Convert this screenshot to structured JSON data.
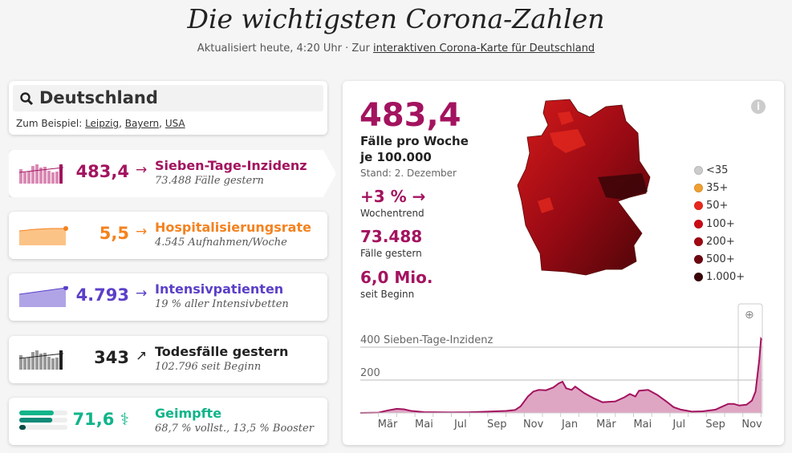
{
  "header": {
    "title": "Die wichtigsten Corona-Zahlen",
    "updated": "Aktualisiert heute, 4:20 Uhr · Zur ",
    "link": "interaktiven Corona-Karte für Deutschland"
  },
  "search": {
    "value": "Deutschland",
    "hint_prefix": "Zum Beispiel: ",
    "examples": [
      "Leipzig",
      "Bayern",
      "USA"
    ]
  },
  "stats": [
    {
      "value": "483,4",
      "arrow": "→",
      "label": "Sieben-Tage-Inzidenz",
      "sub": "73.488 Fälle gestern",
      "color": "#a3135f"
    },
    {
      "value": "5,5",
      "arrow": "→",
      "label": "Hospitalisierungsrate",
      "sub": "4.545 Aufnahmen/Woche",
      "color": "#f4821f"
    },
    {
      "value": "4.793",
      "arrow": "→",
      "label": "Intensivpatienten",
      "sub": "19 % aller Intensivbetten",
      "color": "#5b3fc9"
    },
    {
      "value": "343",
      "arrow": "↗",
      "label": "Todesfälle gestern",
      "sub": "102.796 seit Beginn",
      "color": "#222222"
    },
    {
      "value": "71,6 ⚕",
      "arrow": "",
      "label": "Geimpfte",
      "sub": "68,7 % vollst., 13,5 % Booster",
      "color": "#10b48a",
      "bars": [
        71.6,
        68.7,
        13.5
      ]
    }
  ],
  "detail": {
    "value": "483,4",
    "unit1": "Fälle pro Woche",
    "unit2": "je 100.000",
    "stand": "Stand: 2. Dezember",
    "trend": "+3 % →",
    "trend_label": "Wochentrend",
    "cases": "73.488",
    "cases_label": "Fälle gestern",
    "total": "6,0 Mio.",
    "total_label": "seit Beginn",
    "info": "i"
  },
  "legend": [
    {
      "label": "<35",
      "color": "#cccccc"
    },
    {
      "label": "35+",
      "color": "#f0a030"
    },
    {
      "label": "50+",
      "color": "#e8281e"
    },
    {
      "label": "100+",
      "color": "#cc0a14"
    },
    {
      "label": "200+",
      "color": "#a00812"
    },
    {
      "label": "500+",
      "color": "#6e0610"
    },
    {
      "label": "1.000+",
      "color": "#3a0508"
    }
  ],
  "chart_data": {
    "type": "area",
    "title": "Sieben-Tage-Inzidenz",
    "ylim": [
      0,
      460
    ],
    "yticks": [
      200,
      400
    ],
    "ytick_labels": [
      "200",
      "400 Sieben-Tage-Inzidenz"
    ],
    "xlabels": [
      "Mär",
      "Mai",
      "Jul",
      "Sep",
      "Nov",
      "Jan",
      "Mär",
      "Mai",
      "Jul",
      "Sep",
      "Nov"
    ],
    "x_unit": "months since Feb 2020",
    "x": [
      0,
      1,
      1.5,
      2,
      2.4,
      2.8,
      3.5,
      5,
      6,
      7,
      8,
      8.5,
      8.8,
      9.2,
      9.5,
      9.8,
      10.2,
      10.6,
      10.9,
      11.1,
      11.3,
      11.6,
      11.8,
      12.3,
      12.8,
      13.3,
      14,
      14.5,
      14.8,
      15.1,
      15.3,
      15.8,
      16.3,
      16.8,
      17.2,
      17.6,
      18.2,
      18.8,
      19.5,
      19.8,
      20.2,
      20.5,
      20.8,
      21.2,
      21.5,
      21.7,
      21.9,
      22,
      22.03
    ],
    "y": [
      0,
      2,
      15,
      25,
      22,
      12,
      5,
      3,
      4,
      8,
      12,
      18,
      40,
      100,
      130,
      140,
      138,
      155,
      180,
      190,
      150,
      140,
      160,
      120,
      90,
      65,
      70,
      95,
      115,
      100,
      135,
      140,
      110,
      70,
      35,
      20,
      8,
      10,
      20,
      35,
      55,
      55,
      45,
      50,
      75,
      130,
      320,
      450,
      445
    ],
    "color": "#a3135f"
  }
}
